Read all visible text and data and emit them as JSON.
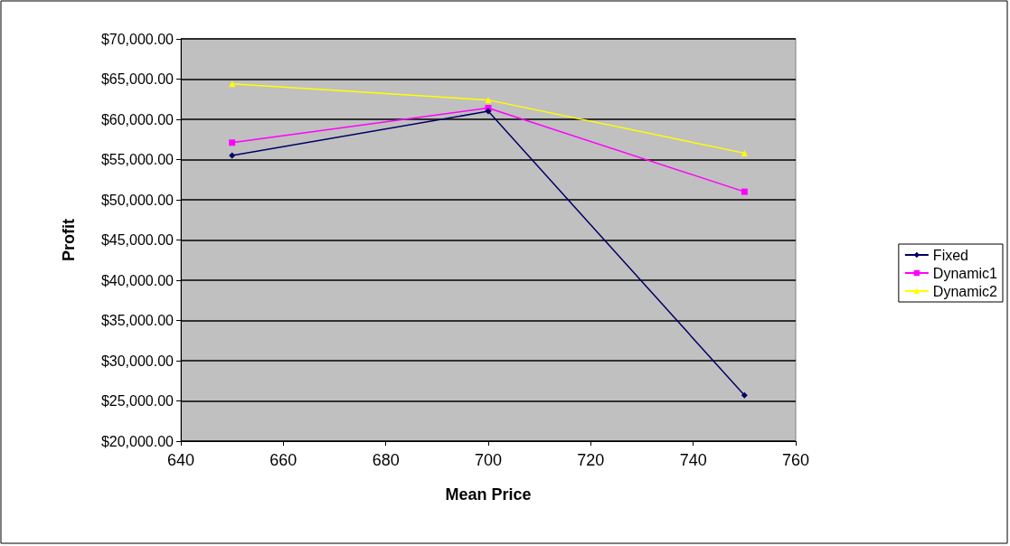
{
  "chart_data": {
    "type": "line",
    "xlabel": "Mean Price",
    "ylabel": "Profit",
    "x": [
      650,
      700,
      750
    ],
    "series": [
      {
        "name": "Fixed",
        "color": "#000066",
        "marker": "diamond",
        "values": [
          55500,
          61000,
          25700
        ]
      },
      {
        "name": "Dynamic1",
        "color": "#ff00ff",
        "marker": "square",
        "values": [
          57100,
          61400,
          51000
        ]
      },
      {
        "name": "Dynamic2",
        "color": "#ffff00",
        "marker": "triangle",
        "values": [
          64400,
          62400,
          55800
        ]
      }
    ],
    "xlim": [
      640,
      760
    ],
    "xticks": [
      640,
      660,
      680,
      700,
      720,
      740,
      760
    ],
    "ylim": [
      20000,
      70000
    ],
    "yticks": [
      {
        "value": 20000,
        "label": "$20,000.00"
      },
      {
        "value": 25000,
        "label": "$25,000.00"
      },
      {
        "value": 30000,
        "label": "$30,000.00"
      },
      {
        "value": 35000,
        "label": "$35,000.00"
      },
      {
        "value": 40000,
        "label": "$40,000.00"
      },
      {
        "value": 45000,
        "label": "$45,000.00"
      },
      {
        "value": 50000,
        "label": "$50,000.00"
      },
      {
        "value": 55000,
        "label": "$55,000.00"
      },
      {
        "value": 60000,
        "label": "$60,000.00"
      },
      {
        "value": 65000,
        "label": "$65,000.00"
      },
      {
        "value": 70000,
        "label": "$70,000.00"
      }
    ],
    "grid": "y",
    "legend": "right"
  }
}
